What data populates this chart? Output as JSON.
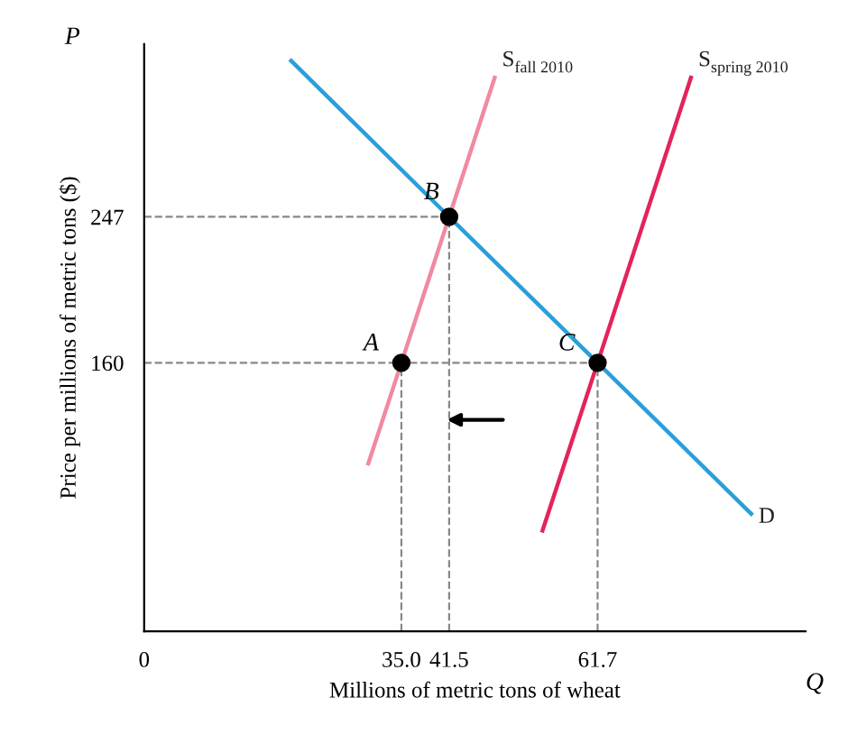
{
  "chart_data": {
    "type": "line",
    "xlabel": "Millions of metric tons of wheat",
    "ylabel": "Price per millions of metric tons ($)",
    "xlim": [
      0,
      90
    ],
    "ylim": [
      0,
      350
    ],
    "xticks": [
      {
        "value": 0,
        "label": "0"
      },
      {
        "value": 35.0,
        "label": "35.0"
      },
      {
        "value": 41.5,
        "label": "41.5"
      },
      {
        "value": 61.7,
        "label": "61.7"
      }
    ],
    "yticks": [
      160,
      247
    ],
    "series": [
      {
        "name": "D",
        "color": "#2a9fd8",
        "x": [
          20,
          41.5,
          61.7,
          82.6
        ],
        "values": [
          340,
          247,
          160,
          70
        ]
      },
      {
        "name": "S$_{fall 2010}$",
        "color": "#f08a9e",
        "x": [
          30.5,
          35,
          41.5,
          47.7
        ],
        "values": [
          100,
          160,
          247,
          330
        ]
      },
      {
        "name": "S$_{spring 2010}$",
        "color": "#e3245a",
        "x": [
          54.2,
          61.7,
          74.4
        ],
        "values": [
          60,
          160,
          330
        ]
      },
      {
        "type": "scatter",
        "color": "#000000",
        "x": [
          35,
          41.5,
          61.7
        ],
        "values": [
          160,
          247,
          160
        ],
        "marker": "circle"
      }
    ],
    "ref_lines": [
      {
        "axis": "y",
        "value": 160,
        "color": "#888888",
        "line_style": "dashed"
      },
      {
        "axis": "y",
        "value": 247,
        "color": "#888888",
        "line_style": "dashed"
      },
      {
        "axis": "x",
        "value": 35,
        "color": "#888888",
        "line_style": "dashed"
      },
      {
        "axis": "x",
        "value": 41.5,
        "color": "#888888",
        "line_style": "dashed"
      },
      {
        "axis": "x",
        "value": 61.7,
        "color": "#888888",
        "line_style": "dashed"
      }
    ],
    "annotations": [
      {
        "text": "A",
        "x": 35,
        "y": 160
      },
      {
        "text": "B",
        "x": 41.5,
        "y": 247
      },
      {
        "text": "C",
        "x": 61.7,
        "y": 160
      },
      "P",
      "Q"
    ],
    "grid": false,
    "legend": false
  }
}
